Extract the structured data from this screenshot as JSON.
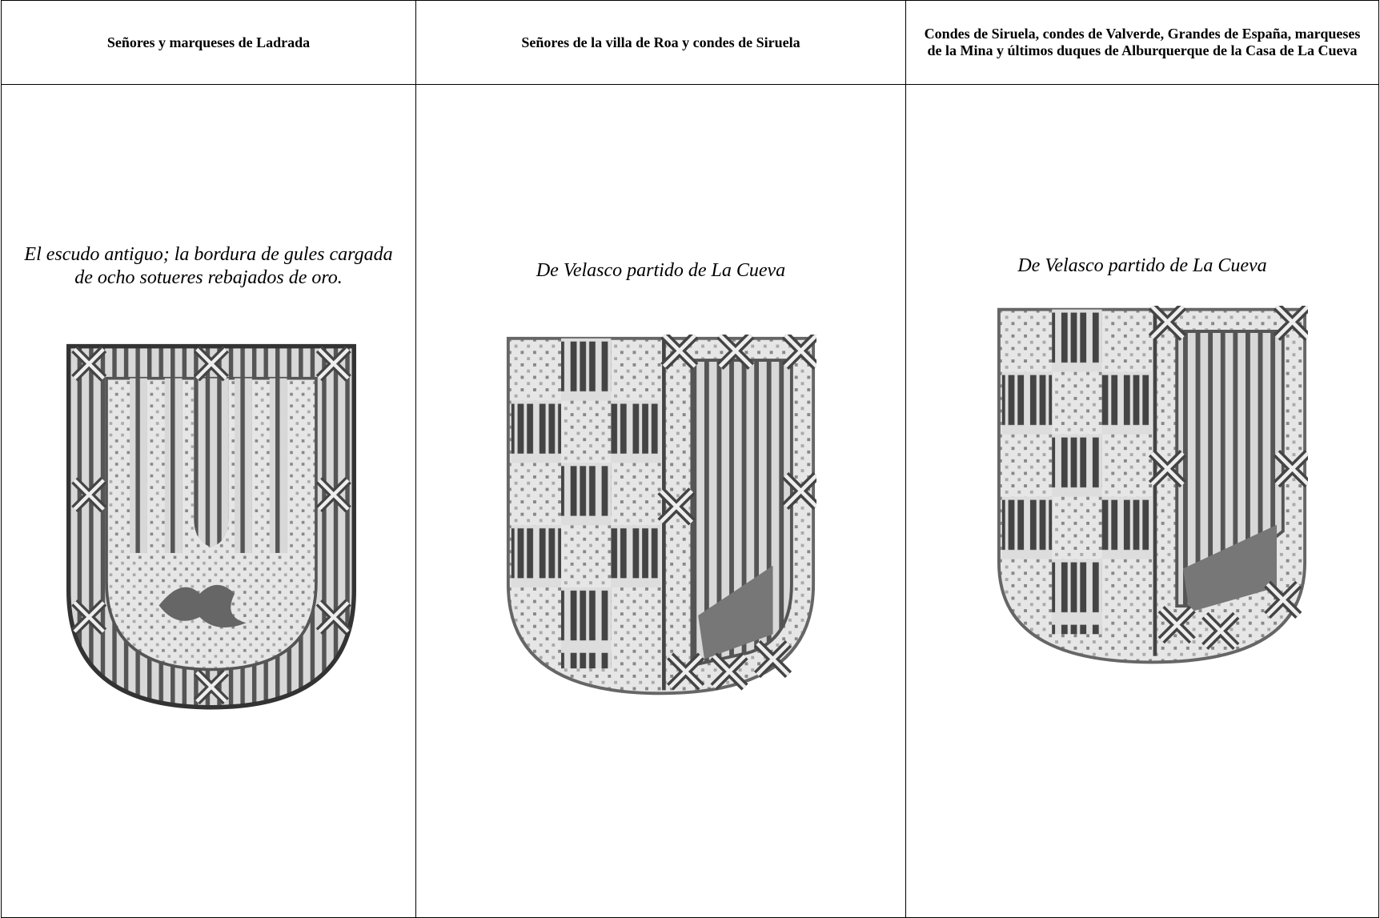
{
  "table": {
    "headers": [
      "Señores y marqueses de Ladrada",
      "Señores de la villa de Roa y condes de Siruela",
      "Condes de Siruela, condes de Valverde, Grandes de España, marqueses de la Mina y últimos duques de Alburquerque de la Casa de La Cueva"
    ],
    "rows": [
      [
        "El escudo antiguo; la bordura de gules cargada de ocho sotueres rebajados de oro.",
        "De Velasco partido de La Cueva",
        "De Velasco partido de La Cueva"
      ]
    ]
  }
}
